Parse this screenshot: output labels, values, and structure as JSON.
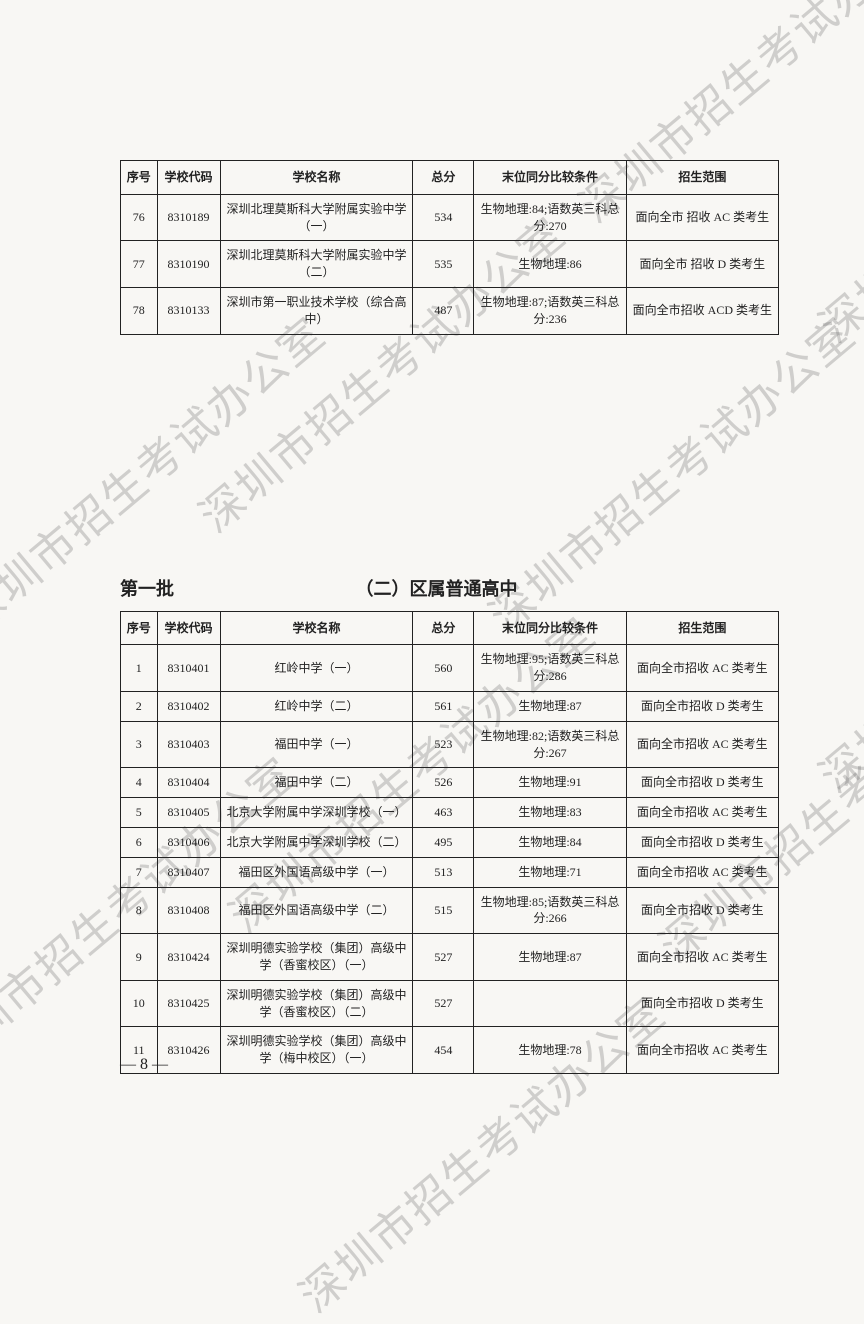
{
  "watermark_text": "深圳市招生考试办公室",
  "table1": {
    "headers": {
      "seq": "序号",
      "code": "学校代码",
      "name": "学校名称",
      "score": "总分",
      "condition": "末位同分比较条件",
      "scope": "招生范围"
    },
    "rows": [
      {
        "seq": "76",
        "code": "8310189",
        "name": "深圳北理莫斯科大学附属实验中学（一）",
        "score": "534",
        "condition": "生物地理:84;语数英三科总分:270",
        "scope": "面向全市 招收 AC 类考生"
      },
      {
        "seq": "77",
        "code": "8310190",
        "name": "深圳北理莫斯科大学附属实验中学（二）",
        "score": "535",
        "condition": "生物地理:86",
        "scope": "面向全市 招收 D 类考生"
      },
      {
        "seq": "78",
        "code": "8310133",
        "name": "深圳市第一职业技术学校（综合高中）",
        "score": "487",
        "condition": "生物地理:87;语数英三科总分:236",
        "scope": "面向全市招收 ACD 类考生"
      }
    ]
  },
  "section": {
    "batch": "第一批",
    "title": "（二）区属普通高中"
  },
  "table2": {
    "headers": {
      "seq": "序号",
      "code": "学校代码",
      "name": "学校名称",
      "score": "总分",
      "condition": "末位同分比较条件",
      "scope": "招生范围"
    },
    "rows": [
      {
        "seq": "1",
        "code": "8310401",
        "name": "红岭中学（一）",
        "score": "560",
        "condition": "生物地理:95;语数英三科总分:286",
        "scope": "面向全市招收 AC 类考生"
      },
      {
        "seq": "2",
        "code": "8310402",
        "name": "红岭中学（二）",
        "score": "561",
        "condition": "生物地理:87",
        "scope": "面向全市招收 D 类考生"
      },
      {
        "seq": "3",
        "code": "8310403",
        "name": "福田中学（一）",
        "score": "523",
        "condition": "生物地理:82;语数英三科总分:267",
        "scope": "面向全市招收 AC 类考生"
      },
      {
        "seq": "4",
        "code": "8310404",
        "name": "福田中学（二）",
        "score": "526",
        "condition": "生物地理:91",
        "scope": "面向全市招收 D 类考生"
      },
      {
        "seq": "5",
        "code": "8310405",
        "name": "北京大学附属中学深圳学校（一）",
        "score": "463",
        "condition": "生物地理:83",
        "scope": "面向全市招收 AC 类考生"
      },
      {
        "seq": "6",
        "code": "8310406",
        "name": "北京大学附属中学深圳学校（二）",
        "score": "495",
        "condition": "生物地理:84",
        "scope": "面向全市招收 D 类考生"
      },
      {
        "seq": "7",
        "code": "8310407",
        "name": "福田区外国语高级中学（一）",
        "score": "513",
        "condition": "生物地理:71",
        "scope": "面向全市招收 AC 类考生"
      },
      {
        "seq": "8",
        "code": "8310408",
        "name": "福田区外国语高级中学（二）",
        "score": "515",
        "condition": "生物地理:85;语数英三科总分:266",
        "scope": "面向全市招收 D 类考生"
      },
      {
        "seq": "9",
        "code": "8310424",
        "name": "深圳明德实验学校（集团）高级中学（香蜜校区）（一）",
        "score": "527",
        "condition": "生物地理:87",
        "scope": "面向全市招收 AC 类考生"
      },
      {
        "seq": "10",
        "code": "8310425",
        "name": "深圳明德实验学校（集团）高级中学（香蜜校区）（二）",
        "score": "527",
        "condition": "",
        "scope": "面向全市招收 D 类考生"
      },
      {
        "seq": "11",
        "code": "8310426",
        "name": "深圳明德实验学校（集团）高级中学（梅中校区）（一）",
        "score": "454",
        "condition": "生物地理:78",
        "scope": "面向全市招收 AC 类考生"
      }
    ]
  },
  "page_number": "— 8 —"
}
